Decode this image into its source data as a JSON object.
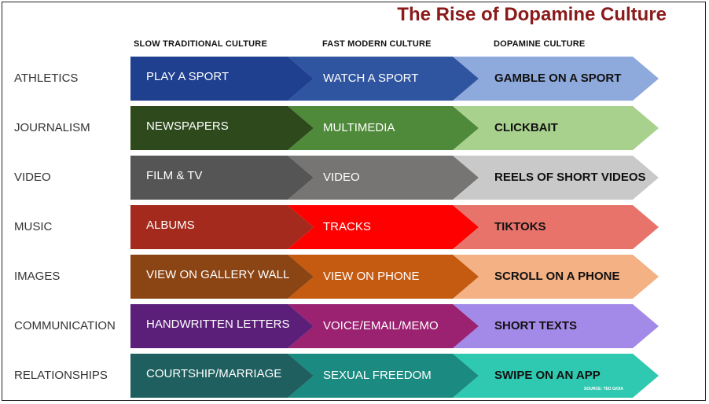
{
  "title": "The Rise of Dopamine Culture",
  "columns": [
    "SLOW TRADITIONAL CULTURE",
    "FAST MODERN CULTURE",
    "DOPAMINE CULTURE"
  ],
  "source": "SOURCE: TED GIOIA",
  "rows": [
    {
      "label": "ATHLETICS",
      "cells": [
        "PLAY A SPORT",
        "WATCH A SPORT",
        "GAMBLE ON A SPORT"
      ],
      "colors": [
        "#1f3f8f",
        "#2f55a0",
        "#8ea9dc"
      ],
      "text_colors": [
        "#ffffff",
        "#ffffff",
        "#111111"
      ]
    },
    {
      "label": "JOURNALISM",
      "cells": [
        "NEWSPAPERS",
        "MULTIMEDIA",
        "CLICKBAIT"
      ],
      "colors": [
        "#2e4a1c",
        "#4f8a3a",
        "#a9d18e"
      ],
      "text_colors": [
        "#ffffff",
        "#ffffff",
        "#111111"
      ]
    },
    {
      "label": "VIDEO",
      "cells": [
        "FILM &  TV",
        "VIDEO",
        "REELS OF SHORT VIDEOS"
      ],
      "colors": [
        "#555555",
        "#777474",
        "#c9c9c9"
      ],
      "text_colors": [
        "#ffffff",
        "#ffffff",
        "#111111"
      ]
    },
    {
      "label": "MUSIC",
      "cells": [
        "ALBUMS",
        "TRACKS",
        "TIKTOKS"
      ],
      "colors": [
        "#a32a1c",
        "#ff0000",
        "#e8736b"
      ],
      "text_colors": [
        "#ffffff",
        "#ffffff",
        "#111111"
      ]
    },
    {
      "label": "IMAGES",
      "cells": [
        "VIEW ON GALLERY WALL",
        "VIEW ON PHONE",
        "SCROLL ON A PHONE"
      ],
      "colors": [
        "#8b4413",
        "#c55a11",
        "#f4b183"
      ],
      "text_colors": [
        "#ffffff",
        "#ffffff",
        "#111111"
      ]
    },
    {
      "label": "COMMUNICATION",
      "cells": [
        "HANDWRITTEN LETTERS",
        "VOICE/EMAIL/MEMO",
        "SHORT TEXTS"
      ],
      "colors": [
        "#5b1f7a",
        "#9b2171",
        "#a38ae8"
      ],
      "text_colors": [
        "#ffffff",
        "#ffffff",
        "#111111"
      ]
    },
    {
      "label": "RELATIONSHIPS",
      "cells": [
        "COURTSHIP/MARRIAGE",
        "SEXUAL FREEDOM",
        "SWIPE ON AN APP"
      ],
      "colors": [
        "#1f5f5f",
        "#1b8a80",
        "#2ec9b0"
      ],
      "text_colors": [
        "#ffffff",
        "#ffffff",
        "#111111"
      ]
    }
  ]
}
